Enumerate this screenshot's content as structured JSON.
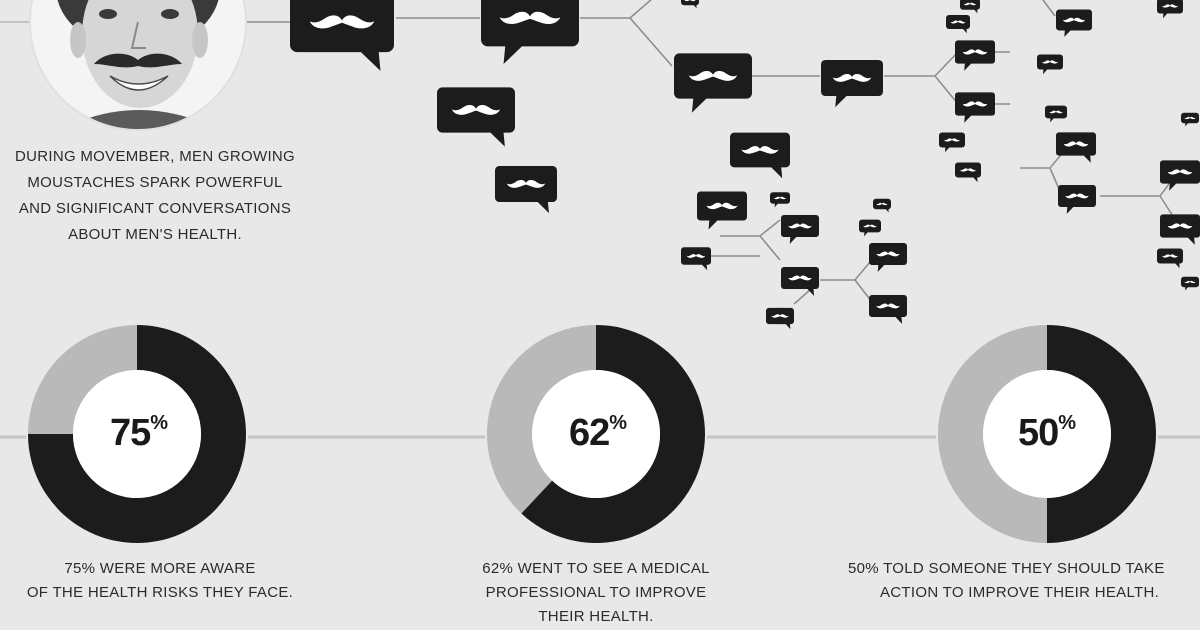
{
  "intro": {
    "lines": [
      "DURING MOVEMBER, MEN GROWING",
      "MOUSTACHES SPARK POWERFUL",
      "AND SIGNIFICANT CONVERSATIONS",
      "ABOUT MEN'S HEALTH."
    ]
  },
  "icons": {
    "portrait": "portrait-icon",
    "speech": "moustache-speech-bubble-icon"
  },
  "colors": {
    "background": "#e8e8e8",
    "dark": "#1c1c1c",
    "light": "#b9b9b9",
    "line": "#c4c4c4"
  },
  "chart_data": [
    {
      "type": "pie",
      "values": [
        75,
        25
      ],
      "label_number": "75",
      "label_unit": "%",
      "caption": [
        "75% WERE MORE AWARE",
        "OF THE HEALTH RISKS THEY FACE."
      ]
    },
    {
      "type": "pie",
      "values": [
        62,
        38
      ],
      "label_number": "62",
      "label_unit": "%",
      "caption": [
        "62%  WENT TO SEE A MEDICAL",
        "PROFESSIONAL TO IMPROVE",
        "THEIR HEALTH."
      ]
    },
    {
      "type": "pie",
      "values": [
        50,
        50
      ],
      "label_number": "50",
      "label_unit": "%",
      "caption": [
        "50% TOLD SOMEONE THEY SHOULD TAKE",
        "ACTION TO IMPROVE THEIR HEALTH."
      ]
    }
  ]
}
